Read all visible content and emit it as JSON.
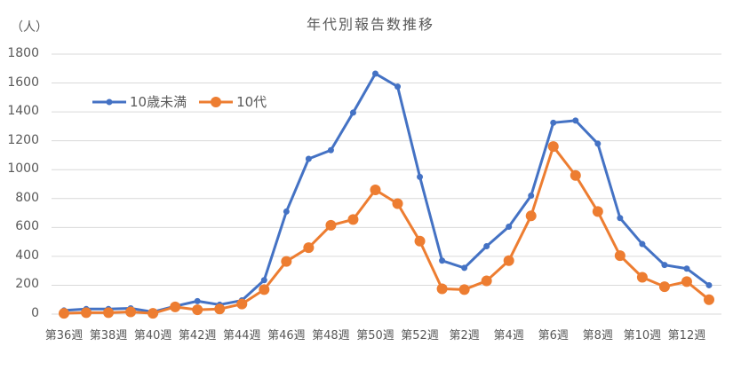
{
  "chart_data": {
    "type": "line",
    "title": "年代別報告数推移",
    "ylabel": "（人）",
    "xlabel": "",
    "ylim": [
      0,
      1800
    ],
    "yticks": [
      0,
      200,
      400,
      600,
      800,
      1000,
      1200,
      1400,
      1600,
      1800
    ],
    "grid": true,
    "legend_position": "upper-left-inside",
    "x": [
      "第36週",
      "第37週",
      "第38週",
      "第39週",
      "第40週",
      "第41週",
      "第42週",
      "第43週",
      "第44週",
      "第45週",
      "第46週",
      "第47週",
      "第48週",
      "第49週",
      "第50週",
      "第51週",
      "第52週",
      "第1週",
      "第2週",
      "第3週",
      "第4週",
      "第5週",
      "第6週",
      "第7週",
      "第8週",
      "第9週",
      "第10週",
      "第11週",
      "第12週",
      "第13週"
    ],
    "xtick_labels": [
      "第36週",
      "第38週",
      "第40週",
      "第42週",
      "第44週",
      "第46週",
      "第48週",
      "第50週",
      "第52週",
      "第2週",
      "第4週",
      "第6週",
      "第8週",
      "第10週",
      "第12週"
    ],
    "series": [
      {
        "name": "10歳未満",
        "color": "#4472C4",
        "values": [
          25,
          35,
          35,
          40,
          15,
          55,
          90,
          65,
          95,
          235,
          710,
          1075,
          1135,
          1395,
          1665,
          1575,
          950,
          370,
          320,
          470,
          605,
          820,
          1325,
          1340,
          1180,
          665,
          485,
          340,
          315,
          200
        ]
      },
      {
        "name": "10代",
        "color": "#ED7D31",
        "values": [
          5,
          10,
          10,
          15,
          5,
          50,
          30,
          35,
          70,
          170,
          365,
          460,
          615,
          655,
          860,
          765,
          505,
          175,
          170,
          230,
          370,
          680,
          1160,
          960,
          710,
          405,
          255,
          190,
          225,
          100
        ]
      }
    ]
  },
  "legend": {
    "series0": "10歳未満",
    "series1": "10代"
  },
  "colors": {
    "grid": "#D9D9D9",
    "text": "#595959"
  }
}
